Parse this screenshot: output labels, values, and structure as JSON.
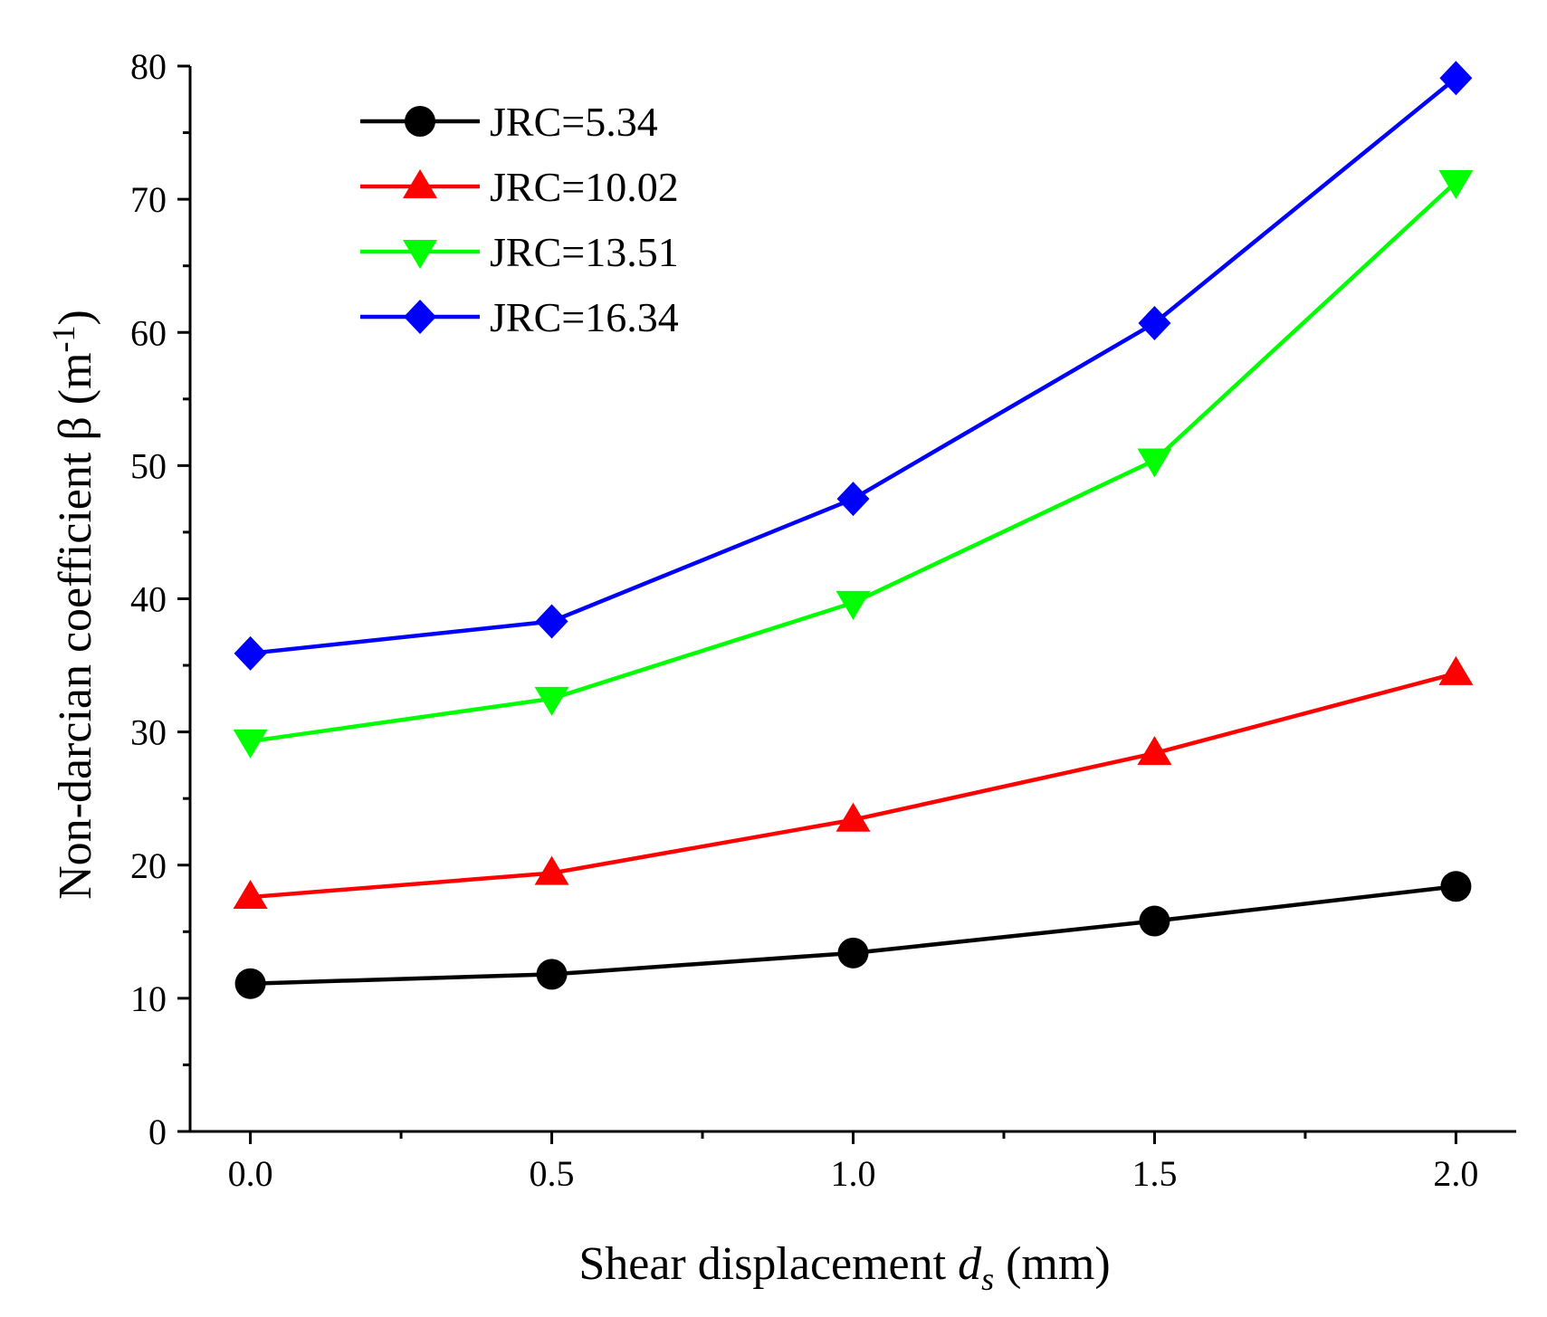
{
  "chart_data": {
    "type": "line",
    "title": "",
    "xlabel": {
      "main": "Shear displacement ",
      "var": "d",
      "sub": "s",
      "unit": " (mm)"
    },
    "ylabel": {
      "main": "Non-darcian coefficient β (m",
      "sup": "-1",
      "end": ")"
    },
    "x": [
      0.0,
      0.5,
      1.0,
      1.5,
      2.0
    ],
    "xlim": [
      -0.1,
      2.1
    ],
    "ylim": [
      0,
      80
    ],
    "xticks": [
      0.0,
      0.5,
      1.0,
      1.5,
      2.0
    ],
    "xtick_labels": [
      "0.0",
      "0.5",
      "1.0",
      "1.5",
      "2.0"
    ],
    "yticks": [
      0,
      10,
      20,
      30,
      40,
      50,
      60,
      70,
      80
    ],
    "ytick_labels": [
      "0",
      "10",
      "20",
      "30",
      "40",
      "50",
      "60",
      "70",
      "80"
    ],
    "legend_position": "top-left",
    "grid": false,
    "series": [
      {
        "name": "JRC=5.34",
        "color": "#000000",
        "marker": "circle",
        "values": [
          11.1,
          11.8,
          13.4,
          15.8,
          18.4
        ]
      },
      {
        "name": "JRC=10.02",
        "color": "#ff0000",
        "marker": "triangle-up",
        "values": [
          17.6,
          19.4,
          23.4,
          28.4,
          34.4
        ]
      },
      {
        "name": "JRC=13.51",
        "color": "#00ff00",
        "marker": "triangle-down",
        "values": [
          29.3,
          32.5,
          39.7,
          50.4,
          71.3
        ]
      },
      {
        "name": "JRC=16.34",
        "color": "#0000ff",
        "marker": "diamond",
        "values": [
          35.9,
          38.3,
          47.5,
          60.7,
          79.1
        ]
      }
    ]
  }
}
